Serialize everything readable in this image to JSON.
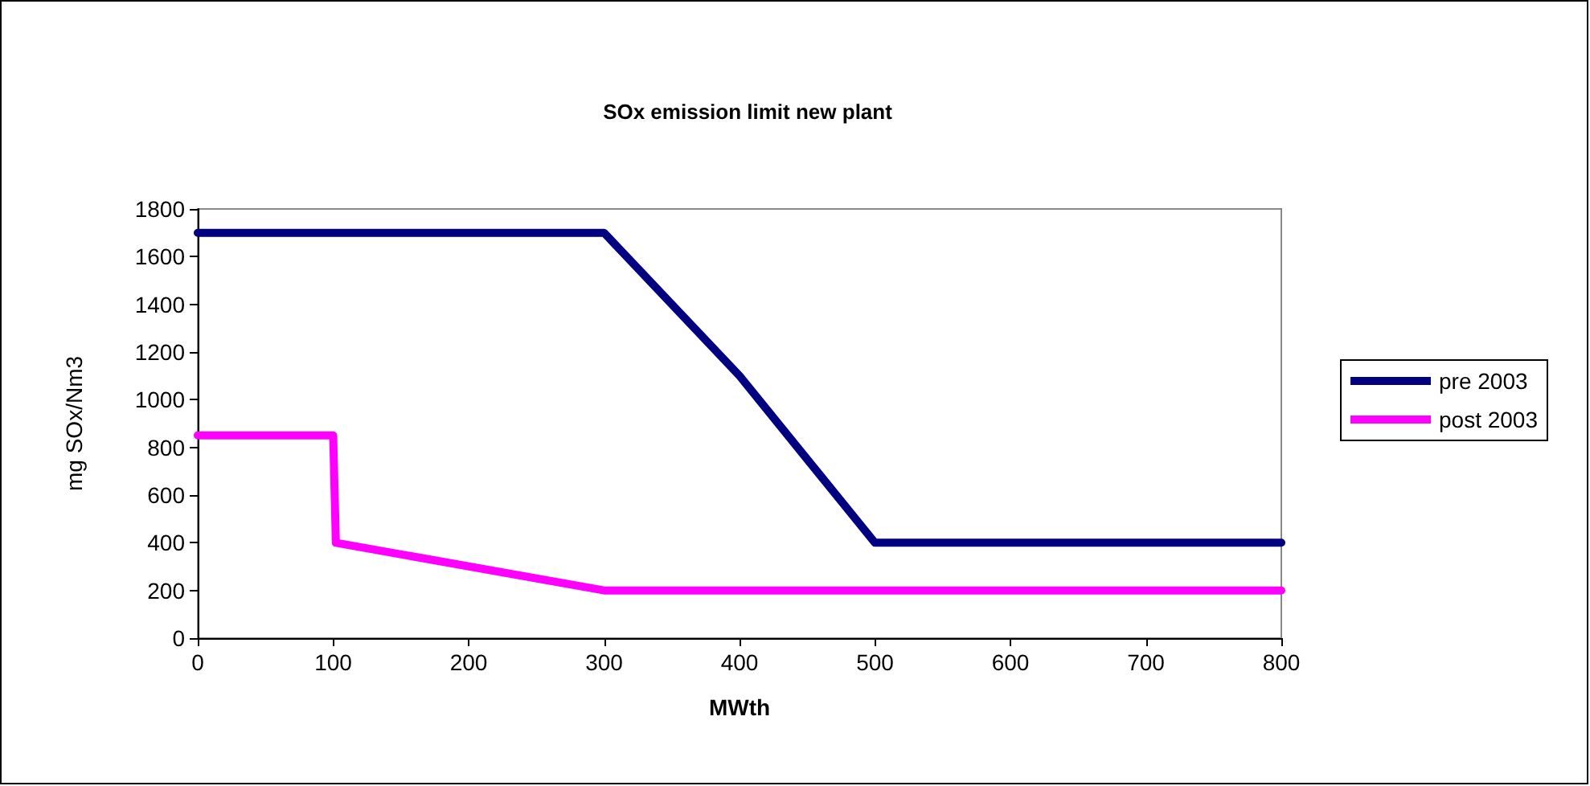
{
  "chart_data": {
    "type": "line",
    "title": "SOx emission limit new plant",
    "xlabel": "MWth",
    "ylabel": "mg SOx/Nm3",
    "xlim": [
      0,
      800
    ],
    "xticks": [
      0,
      100,
      200,
      300,
      400,
      500,
      600,
      700,
      800
    ],
    "ylim": [
      0,
      1800
    ],
    "yticks": [
      0,
      200,
      400,
      600,
      800,
      1000,
      1200,
      1400,
      1600,
      1800
    ],
    "series": [
      {
        "name": "pre 2003",
        "color": "#000080",
        "x": [
          0,
          100,
          300,
          400,
          500,
          600,
          700,
          800
        ],
        "values": [
          1700,
          1700,
          1700,
          1100,
          400,
          400,
          400,
          400
        ]
      },
      {
        "name": "post 2003",
        "color": "#ff00ff",
        "x": [
          0,
          100,
          102,
          300,
          600,
          800
        ],
        "values": [
          850,
          850,
          400,
          200,
          200,
          200
        ]
      }
    ],
    "grid": false,
    "legend": "right",
    "marker": "none",
    "line_style": "solid"
  }
}
